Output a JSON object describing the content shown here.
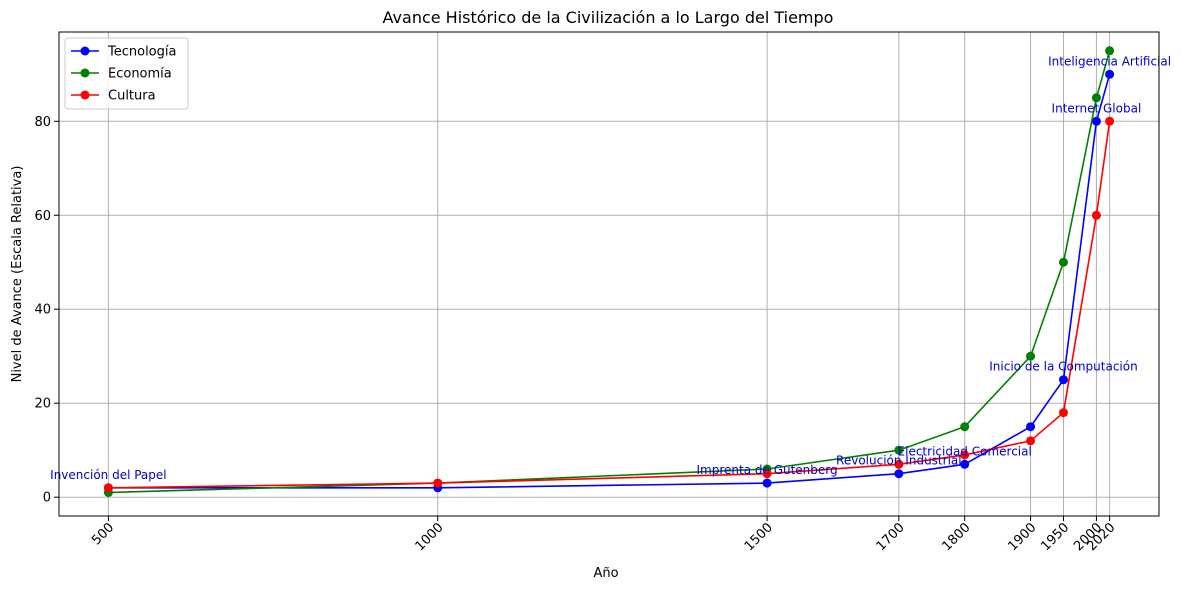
{
  "chart_data": {
    "type": "line",
    "title": "Avance Histórico de la Civilización a lo Largo del Tiempo",
    "xlabel": "Año",
    "ylabel": "Nivel de Avance (Escala Relativa)",
    "x": [
      500,
      1000,
      1500,
      1700,
      1800,
      1900,
      1950,
      2000,
      2020
    ],
    "x_tick_labels": [
      "500",
      "1000",
      "1500",
      "1700",
      "1800",
      "1900",
      "1950",
      "2000",
      "2020"
    ],
    "y_ticks": [
      0,
      20,
      40,
      60,
      80
    ],
    "xlim": [
      425,
      2095
    ],
    "ylim": [
      -4,
      99
    ],
    "grid": true,
    "legend_position": "top-left",
    "series": [
      {
        "name": "Tecnología",
        "color": "#0000ff",
        "values": [
          2,
          2,
          3,
          5,
          7,
          15,
          25,
          80,
          90
        ]
      },
      {
        "name": "Economía",
        "color": "#008000",
        "values": [
          1,
          3,
          6,
          10,
          15,
          30,
          50,
          85,
          95
        ]
      },
      {
        "name": "Cultura",
        "color": "#ff0000",
        "values": [
          2,
          3,
          5,
          7,
          9,
          12,
          18,
          60,
          80
        ]
      }
    ],
    "annotations": [
      {
        "text": "Invención del Papel",
        "x": 500,
        "y": 2,
        "color": "#0000cc"
      },
      {
        "text": "Imprenta de Gutenberg",
        "x": 1500,
        "y": 3,
        "color": "#0000cc"
      },
      {
        "text": "Revolución Industrial",
        "x": 1700,
        "y": 5,
        "color": "#0000cc"
      },
      {
        "text": "Electricidad Comercial",
        "x": 1800,
        "y": 7,
        "color": "#0000cc"
      },
      {
        "text": "Inicio de la Computación",
        "x": 1950,
        "y": 25,
        "color": "#0000cc"
      },
      {
        "text": "Internet Global",
        "x": 2000,
        "y": 80,
        "color": "#0000cc"
      },
      {
        "text": "Inteligencia Artificial",
        "x": 2020,
        "y": 90,
        "color": "#0000cc"
      }
    ]
  }
}
